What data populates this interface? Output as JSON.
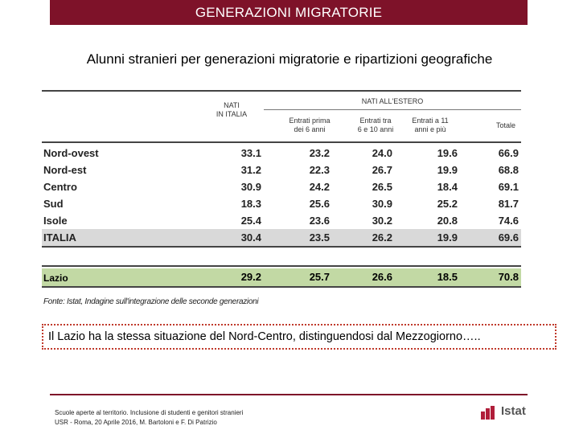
{
  "header": {
    "title": "GENERAZIONI MIGRATORIE"
  },
  "subtitle": "Alunni stranieri per generazioni migratorie e ripartizioni geografiche",
  "table": {
    "group_native": [
      "NATI",
      "IN ITALIA"
    ],
    "group_abroad": "NATI ALL'ESTERO",
    "columns": [
      {
        "line1": "Entrati prima",
        "line2": "dei 6 anni"
      },
      {
        "line1": "Entrati tra",
        "line2": "6 e 10 anni"
      },
      {
        "line1": "Entrati a 11",
        "line2": "anni e più"
      },
      {
        "line1": "Totale",
        "line2": ""
      }
    ],
    "rows": [
      {
        "name": "Nord-ovest",
        "values": [
          "33.1",
          "23.2",
          "24.0",
          "19.6",
          "66.9"
        ]
      },
      {
        "name": "Nord-est",
        "values": [
          "31.2",
          "22.3",
          "26.7",
          "19.9",
          "68.8"
        ]
      },
      {
        "name": "Centro",
        "values": [
          "30.9",
          "24.2",
          "26.5",
          "18.4",
          "69.1"
        ]
      },
      {
        "name": "Sud",
        "values": [
          "18.3",
          "25.6",
          "30.9",
          "25.2",
          "81.7"
        ]
      },
      {
        "name": "Isole",
        "values": [
          "25.4",
          "23.6",
          "30.2",
          "20.8",
          "74.6"
        ]
      },
      {
        "name": "ITALIA",
        "values": [
          "30.4",
          "23.5",
          "26.2",
          "19.9",
          "69.6"
        ]
      }
    ],
    "lazio": {
      "name": "Lazio",
      "values": [
        "29.2",
        "25.7",
        "26.6",
        "18.5",
        "70.8"
      ]
    },
    "highlight_colors": {
      "italia": "#d9d9d9",
      "lazio": "#c2d9a4"
    }
  },
  "source": "Fonte: Istat, Indagine sull'integrazione delle seconde generazioni",
  "note": "Il Lazio ha la stessa situazione del Nord-Centro, distinguendosi dal Mezzogiorno…..",
  "footer": {
    "line1": "Scuole aperte al territorio. Inclusione di studenti e genitori stranieri",
    "line2": "USR - Roma, 20 Aprile 2016, M. Bartoloni e F. Di Patrizio"
  },
  "logo": {
    "text": "Istat",
    "icon": "istat-bars-icon",
    "color": "#b01e3a"
  },
  "brand_color": "#7e1229"
}
